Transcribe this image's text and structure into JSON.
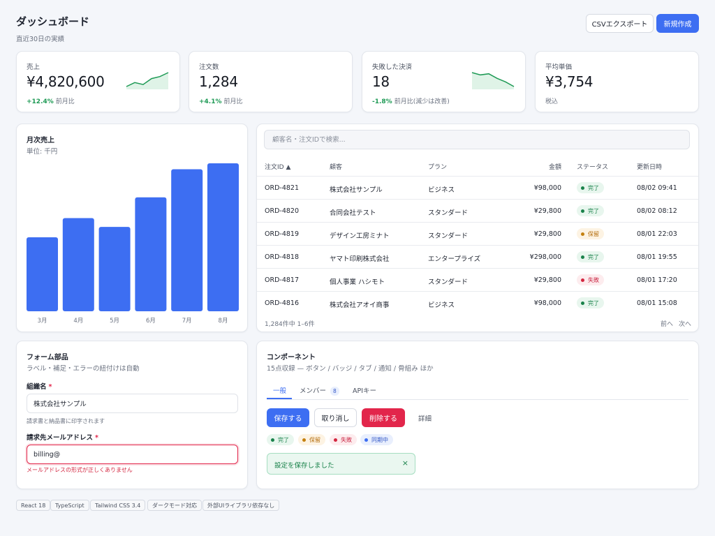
{
  "header": {
    "title": "ダッシュボード",
    "subtitle": "直近30日の実績",
    "export_label": "CSVエクスポート",
    "new_label": "新規作成"
  },
  "stats": [
    {
      "label": "売上",
      "value": "¥4,820,600",
      "delta": "+12.4%",
      "note": "前月比",
      "spark_trend": [
        3,
        5,
        4,
        7,
        8,
        10
      ]
    },
    {
      "label": "注文数",
      "value": "1,284",
      "delta": "+4.1%",
      "note": "前月比"
    },
    {
      "label": "失敗した決済",
      "value": "18",
      "delta": "-1.8%",
      "note": "前月比(減少は改善)",
      "spark_trend": [
        9,
        8,
        8.5,
        6.5,
        5,
        3
      ]
    },
    {
      "label": "平均単価",
      "value": "¥3,754",
      "note": "税込"
    }
  ],
  "colors": {
    "accent": "#3d6ef2",
    "positive": "#1e9a55",
    "danger": "#e2264b"
  },
  "monthly_chart": {
    "title": "月次売上",
    "unit": "単位: 千円"
  },
  "chart_data": {
    "type": "bar",
    "categories": [
      "3月",
      "4月",
      "5月",
      "6月",
      "7月",
      "8月"
    ],
    "values": [
      50,
      63,
      57,
      77,
      96,
      100
    ],
    "ylim": [
      0,
      100
    ],
    "grid": false,
    "legend": "none"
  },
  "orders": {
    "search_placeholder": "顧客名・注文IDで検索...",
    "columns": [
      "注文ID ▲",
      "顧客",
      "プラン",
      "金額",
      "ステータス",
      "更新日時"
    ],
    "rows": [
      {
        "id": "ORD-4821",
        "customer": "株式会社サンプル",
        "plan": "ビジネス",
        "amount": "¥98,000",
        "status": "完了",
        "updated": "08/02 09:41"
      },
      {
        "id": "ORD-4820",
        "customer": "合同会社テスト",
        "plan": "スタンダード",
        "amount": "¥29,800",
        "status": "完了",
        "updated": "08/02 08:12"
      },
      {
        "id": "ORD-4819",
        "customer": "デザイン工房ミナト",
        "plan": "スタンダード",
        "amount": "¥29,800",
        "status": "保留",
        "updated": "08/01 22:03"
      },
      {
        "id": "ORD-4818",
        "customer": "ヤマト印刷株式会社",
        "plan": "エンタープライズ",
        "amount": "¥298,000",
        "status": "完了",
        "updated": "08/01 19:55"
      },
      {
        "id": "ORD-4817",
        "customer": "個人事業 ハシモト",
        "plan": "スタンダード",
        "amount": "¥29,800",
        "status": "失敗",
        "updated": "08/01 17:20"
      },
      {
        "id": "ORD-4816",
        "customer": "株式会社アオイ商事",
        "plan": "ビジネス",
        "amount": "¥98,000",
        "status": "完了",
        "updated": "08/01 15:08"
      }
    ],
    "summary": "1,284件中 1–6件",
    "prev": "前へ",
    "next": "次へ"
  },
  "form": {
    "title": "フォーム部品",
    "subtitle": "ラベル・補足・エラーの紐付けは自動",
    "org_label": "組織名",
    "org_value": "株式会社サンプル",
    "org_hint": "請求書と納品書に印字されます",
    "email_label": "請求先メールアドレス",
    "email_value": "billing@",
    "email_error": "メールアドレスの形式が正しくありません",
    "required_mark": "*"
  },
  "components": {
    "title": "コンポーネント",
    "subtitle": "15点収録 — ボタン / バッジ / タブ / 通知 / 骨組み ほか",
    "tabs": [
      {
        "label": "一般"
      },
      {
        "label": "メンバー",
        "count": "8"
      },
      {
        "label": "APIキー"
      }
    ],
    "save": "保存する",
    "cancel": "取り消し",
    "delete": "削除する",
    "detail": "詳細",
    "badges": [
      "完了",
      "保留",
      "失敗",
      "同期中"
    ],
    "toast": "設定を保存しました",
    "toast_close": "×"
  },
  "footer_tags": [
    "React 18",
    "TypeScript",
    "Tailwind CSS 3.4",
    "ダークモード対応",
    "外部UIライブラリ依存なし"
  ]
}
